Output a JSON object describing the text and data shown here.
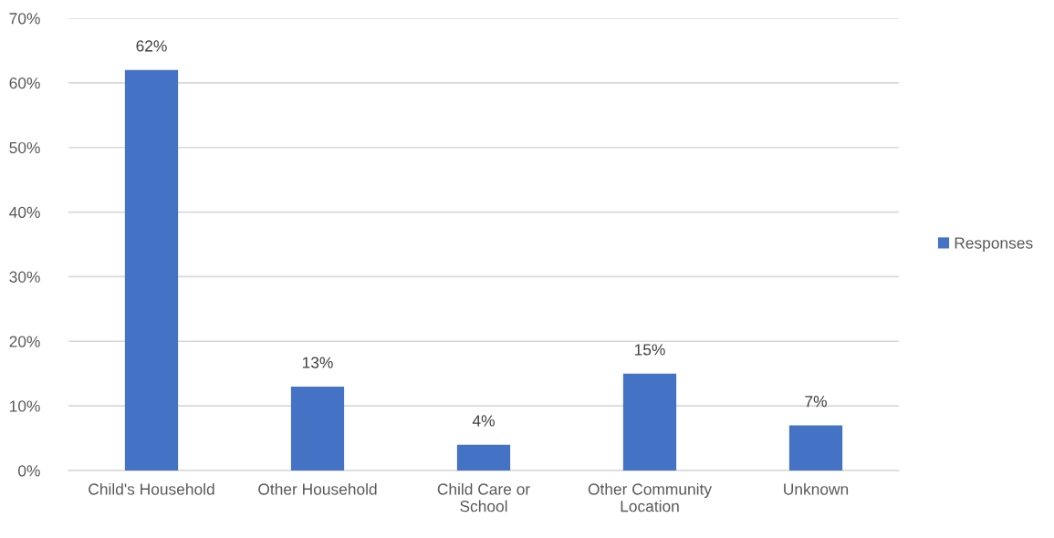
{
  "chart_data": {
    "type": "bar",
    "categories": [
      "Child's Household",
      "Other Household",
      "Child Care or\nSchool",
      "Other Community\nLocation",
      "Unknown"
    ],
    "series": [
      {
        "name": "Responses",
        "color": "#4472c4",
        "values": [
          62,
          13,
          4,
          15,
          7
        ],
        "value_labels": [
          "62%",
          "13%",
          "4%",
          "15%",
          "7%"
        ]
      }
    ],
    "ylim": [
      0,
      70
    ],
    "yticks": [
      {
        "value": 0,
        "label": "0%"
      },
      {
        "value": 10,
        "label": "10%"
      },
      {
        "value": 20,
        "label": "20%"
      },
      {
        "value": 30,
        "label": "30%"
      },
      {
        "value": 40,
        "label": "40%"
      },
      {
        "value": 50,
        "label": "50%"
      },
      {
        "value": 60,
        "label": "60%"
      },
      {
        "value": 70,
        "label": "70%"
      }
    ],
    "grid": "y",
    "legend": "right"
  }
}
